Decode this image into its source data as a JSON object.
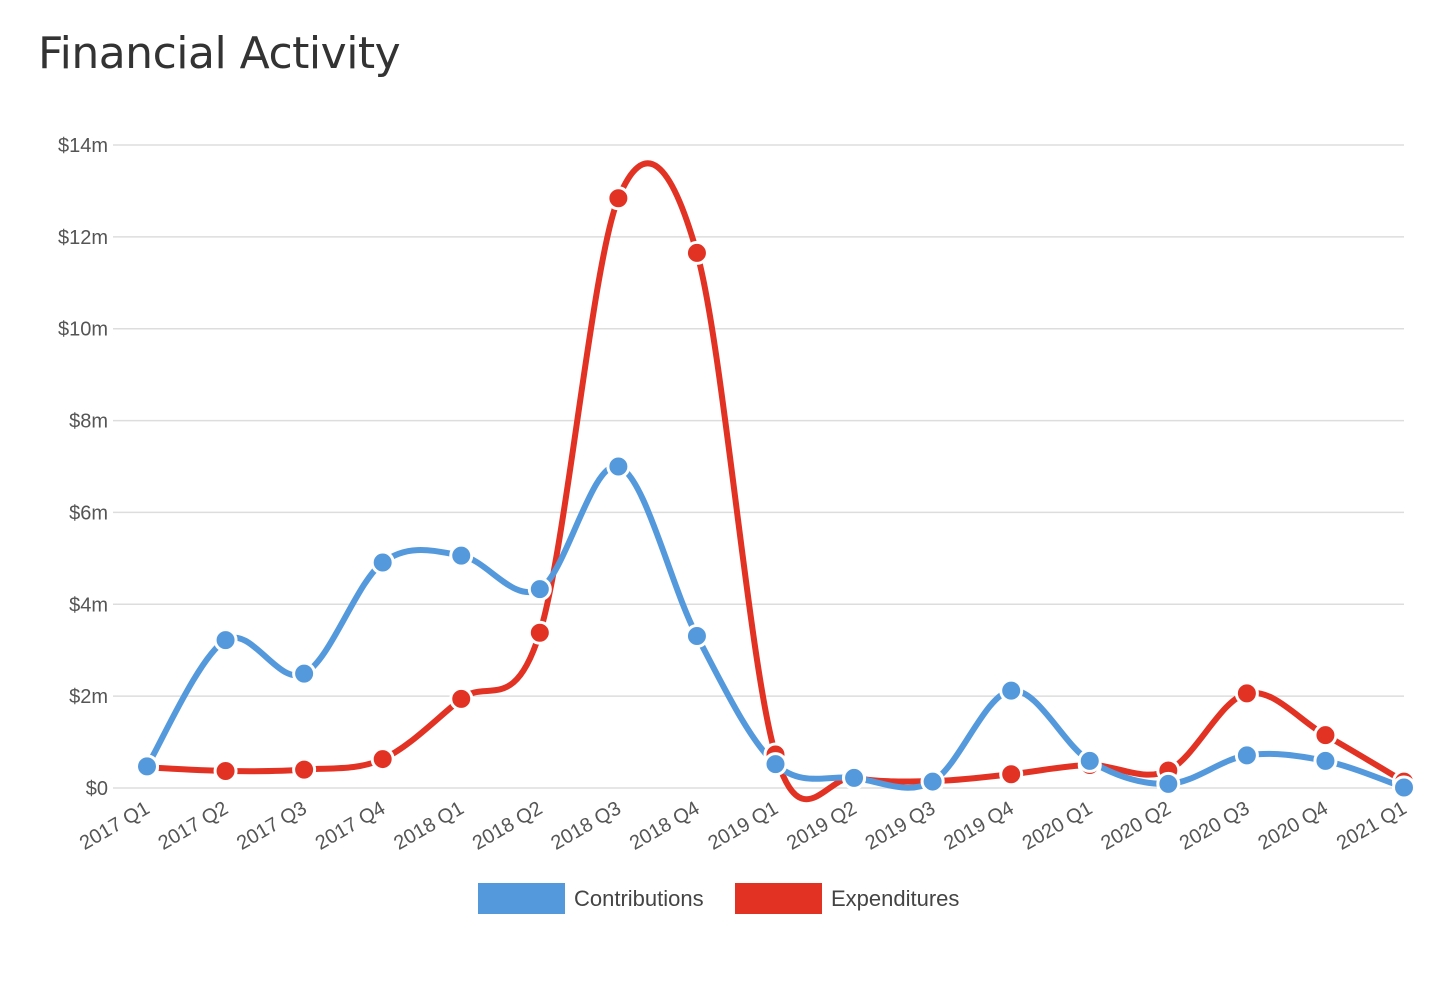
{
  "title": "Financial Activity",
  "chart_data": {
    "type": "line",
    "categories": [
      "2017 Q1",
      "2017 Q2",
      "2017 Q3",
      "2017 Q4",
      "2018 Q1",
      "2018 Q2",
      "2018 Q3",
      "2018 Q4",
      "2019 Q1",
      "2019 Q2",
      "2019 Q3",
      "2019 Q4",
      "2020 Q1",
      "2020 Q2",
      "2020 Q3",
      "2020 Q4",
      "2021 Q1"
    ],
    "series": [
      {
        "name": "Contributions",
        "color": "#5599dd",
        "values": [
          0.47,
          3.22,
          2.49,
          4.91,
          5.06,
          4.33,
          7.0,
          3.31,
          0.52,
          0.22,
          0.14,
          2.12,
          0.59,
          0.09,
          0.71,
          0.59,
          0.01
        ]
      },
      {
        "name": "Expenditures",
        "color": "#e23224",
        "values": [
          0.45,
          0.37,
          0.4,
          0.63,
          1.94,
          3.38,
          12.84,
          11.65,
          0.73,
          0.22,
          0.15,
          0.3,
          0.5,
          0.38,
          2.06,
          1.15,
          0.14
        ]
      }
    ],
    "ylim": [
      0,
      14
    ],
    "yticks": [
      {
        "value": 0,
        "label": "$0"
      },
      {
        "value": 2,
        "label": "$2m"
      },
      {
        "value": 4,
        "label": "$4m"
      },
      {
        "value": 6,
        "label": "$6m"
      },
      {
        "value": 8,
        "label": "$8m"
      },
      {
        "value": 10,
        "label": "$10m"
      },
      {
        "value": 12,
        "label": "$12m"
      },
      {
        "value": 14,
        "label": "$14m"
      }
    ],
    "grid": true,
    "legend_position": "bottom"
  }
}
